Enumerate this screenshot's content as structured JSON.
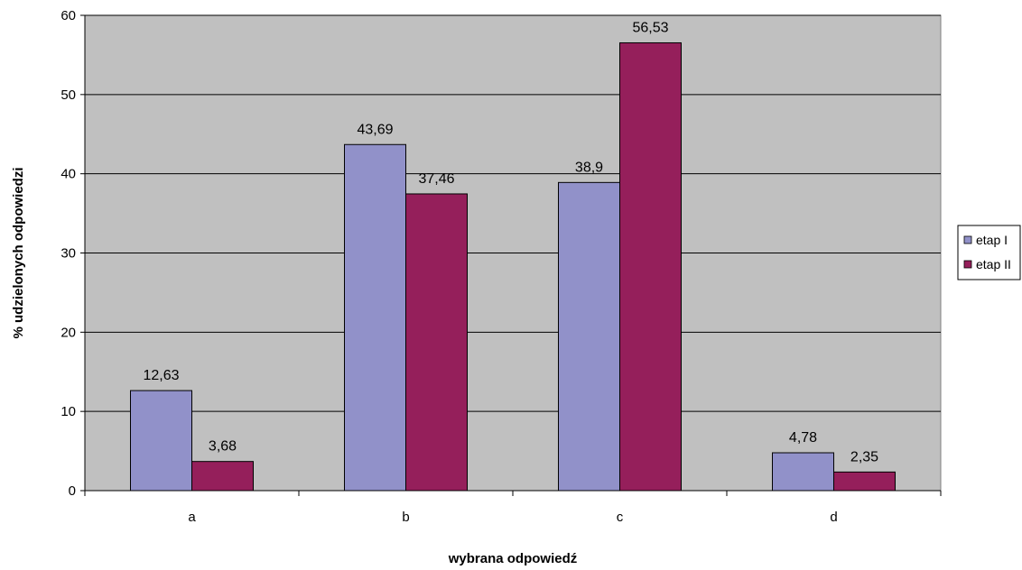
{
  "chart_data": {
    "type": "bar",
    "categories": [
      "a",
      "b",
      "c",
      "d"
    ],
    "series": [
      {
        "name": "etap I",
        "values": [
          12.63,
          43.69,
          38.9,
          4.78
        ],
        "labels": [
          "12,63",
          "43,69",
          "38,9",
          "4,78"
        ],
        "color": "#9191c9"
      },
      {
        "name": "etap II",
        "values": [
          3.68,
          37.46,
          56.53,
          2.35
        ],
        "labels": [
          "3,68",
          "37,46",
          "56,53",
          "2,35"
        ],
        "color": "#951f5b"
      }
    ],
    "title": "",
    "xlabel": "wybrana odpowiedź",
    "ylabel": "% udzielonych odpowiedzi",
    "ylim": [
      0,
      60
    ],
    "yticks": [
      0,
      10,
      20,
      30,
      40,
      50,
      60
    ],
    "grid": true,
    "legend_position": "right",
    "plot_background": "#c0c0c0"
  }
}
